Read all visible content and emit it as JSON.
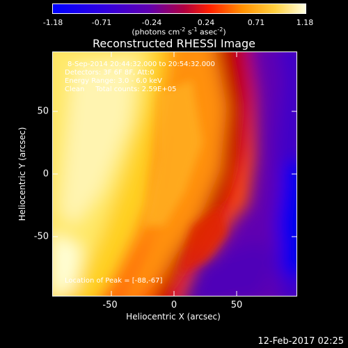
{
  "colorbar": {
    "ticks": [
      "-1.18",
      "-0.71",
      "-0.24",
      "0.24",
      "0.71",
      "1.18"
    ],
    "units_prefix": "(photons cm",
    "units_exp1": "-2",
    "units_mid": " s",
    "units_exp2": "-1",
    "units_mid2": " asec",
    "units_exp3": "-2",
    "units_suffix": ")"
  },
  "title": "Reconstructed RHESSI Image",
  "info": {
    "line1": "8-Sep-2014 20:44:32.000 to 20:54:32.000",
    "line2": "Detectors: 3F 6F 8F, Att:0",
    "line3": "Energy Range: 3.0 - 6.0 keV",
    "line4": "Clean     Total counts: 2.59E+05",
    "peak": "Location of Peak = [-88,-67]"
  },
  "axes": {
    "xlabel": "Heliocentric X (arcsec)",
    "ylabel": "Heliocentric Y (arcsec)",
    "xticks": [
      "-50",
      "0",
      "50"
    ],
    "yticks": [
      "50",
      "0",
      "-50"
    ]
  },
  "timestamp": "12-Feb-2017 02:25",
  "colors": {
    "cmap": [
      "#0000ff",
      "#5a00c8",
      "#c00000",
      "#ff4000",
      "#ffa000",
      "#ffe060",
      "#ffffe0"
    ]
  }
}
